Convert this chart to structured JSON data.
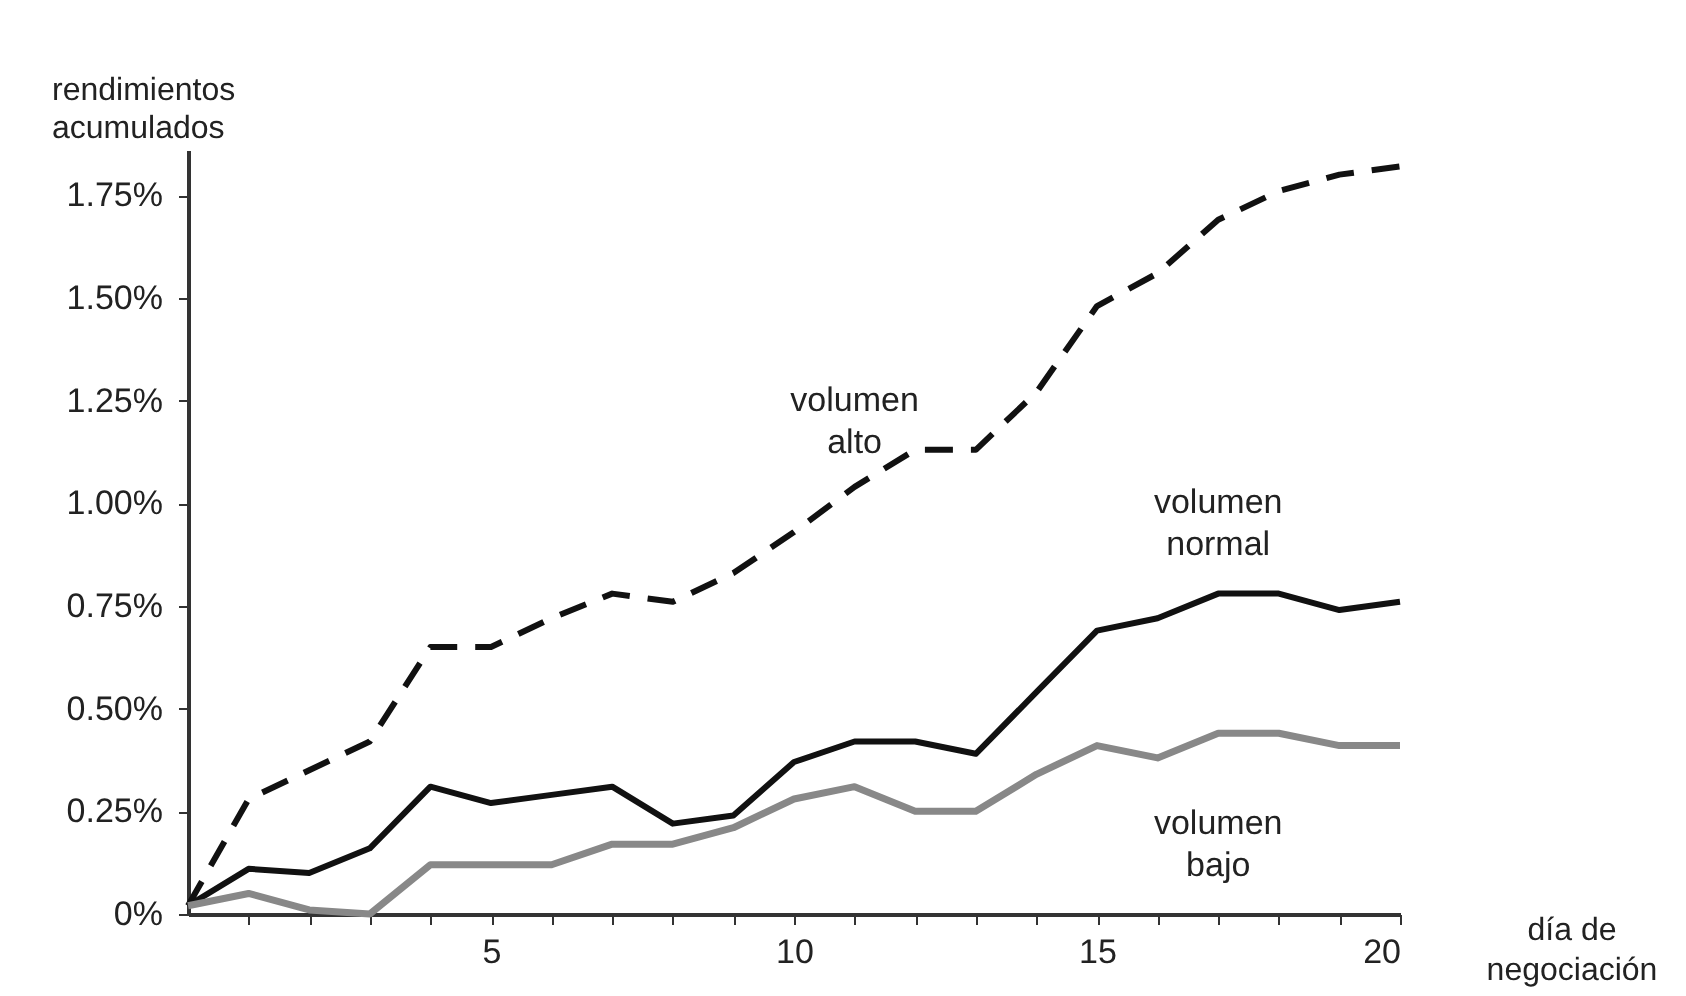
{
  "chart_data": {
    "type": "line",
    "xlabel": "día de negociación",
    "ylabel": "rendimientos acumulados",
    "x": [
      0,
      1,
      2,
      3,
      4,
      5,
      6,
      7,
      8,
      9,
      10,
      11,
      12,
      13,
      14,
      15,
      16,
      17,
      18,
      19,
      20
    ],
    "series": [
      {
        "name": "volumen alto",
        "color": "#111111",
        "line_style": "dashed",
        "values": [
          0.02,
          0.28,
          0.35,
          0.42,
          0.65,
          0.65,
          0.72,
          0.78,
          0.76,
          0.83,
          0.93,
          1.04,
          1.13,
          1.13,
          1.27,
          1.48,
          1.56,
          1.69,
          1.76,
          1.8,
          1.82
        ]
      },
      {
        "name": "volumen normal",
        "color": "#111111",
        "line_style": "solid",
        "values": [
          0.02,
          0.11,
          0.1,
          0.16,
          0.31,
          0.27,
          0.29,
          0.31,
          0.22,
          0.24,
          0.37,
          0.42,
          0.42,
          0.39,
          0.54,
          0.69,
          0.72,
          0.78,
          0.78,
          0.74,
          0.76
        ]
      },
      {
        "name": "volumen bajo",
        "color": "#888888",
        "line_style": "solid",
        "values": [
          0.02,
          0.05,
          0.01,
          0.0,
          0.12,
          0.12,
          0.12,
          0.17,
          0.17,
          0.21,
          0.28,
          0.31,
          0.25,
          0.25,
          0.34,
          0.41,
          0.38,
          0.44,
          0.44,
          0.41,
          0.41
        ]
      }
    ],
    "xlim": [
      0,
      20
    ],
    "ylim": [
      0,
      1.86
    ],
    "xticks": [
      {
        "value": 1,
        "label": null
      },
      {
        "value": 2,
        "label": null
      },
      {
        "value": 3,
        "label": null
      },
      {
        "value": 4,
        "label": null
      },
      5,
      {
        "value": 6,
        "label": null
      },
      {
        "value": 7,
        "label": null
      },
      {
        "value": 8,
        "label": null
      },
      {
        "value": 9,
        "label": null
      },
      10,
      {
        "value": 11,
        "label": null
      },
      {
        "value": 12,
        "label": null
      },
      {
        "value": 13,
        "label": null
      },
      {
        "value": 14,
        "label": null
      },
      15,
      {
        "value": 16,
        "label": null
      },
      {
        "value": 17,
        "label": null
      },
      {
        "value": 18,
        "label": null
      },
      {
        "value": 19,
        "label": null
      },
      20
    ],
    "yticks": [
      {
        "value": 0,
        "label": "0%"
      },
      {
        "value": 0.25,
        "label": "0.25%"
      },
      {
        "value": 0.5,
        "label": "0.50%"
      },
      {
        "value": 0.75,
        "label": "0.75%"
      },
      {
        "value": 1.0,
        "label": "1.00%"
      },
      {
        "value": 1.25,
        "label": "1.25%"
      },
      {
        "value": 1.5,
        "label": "1.50%"
      },
      {
        "value": 1.75,
        "label": "1.75%"
      }
    ],
    "grid": false,
    "legend": false,
    "marker": "none"
  }
}
